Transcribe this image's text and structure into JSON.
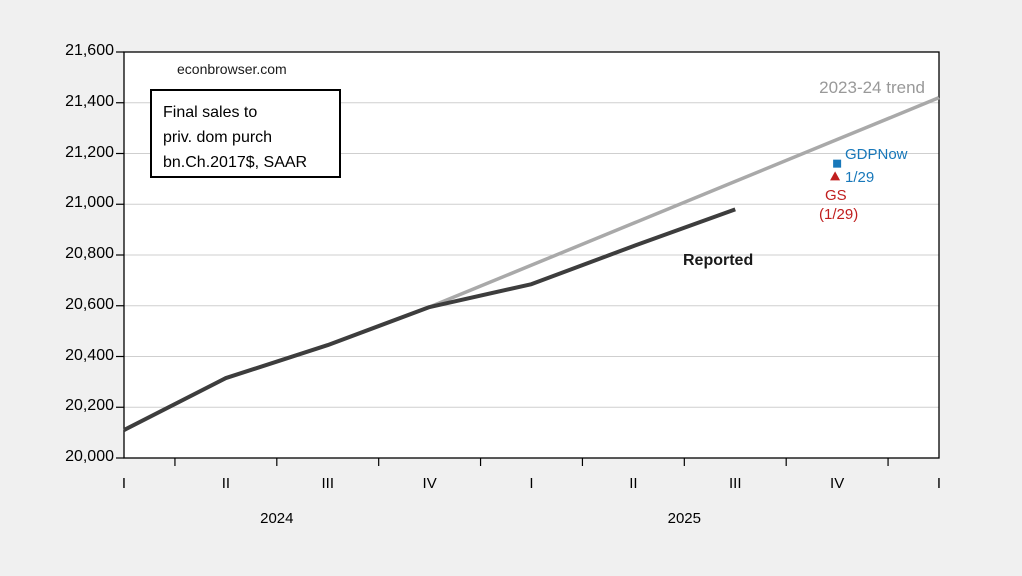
{
  "page": {
    "watermark": "econbrowser.com"
  },
  "annotation_box": {
    "line1": "Final sales to",
    "line2": "priv. dom purch",
    "line3": "bn.Ch.2017$, SAAR"
  },
  "labels": {
    "trend": "2023-24 trend",
    "reported": "Reported",
    "gdpnow": "GDPNow",
    "gdpnow_date": "1/29",
    "gs": "GS",
    "gs_date": "(1/29)"
  },
  "colors": {
    "background": "#f0f0f0",
    "plot_background": "#ffffff",
    "frame": "#000000",
    "grid": "#cfcfcf",
    "trend_gray": "#a9a9a9",
    "reported_dark": "#3d3d3d",
    "gdpnow_blue": "#1878ba",
    "gs_red": "#c01e1e"
  },
  "chart_data": {
    "type": "line",
    "title": "",
    "xlabel": "",
    "ylabel": "Final sales to private domestic purchasers, bn.Ch.2017$, SAAR",
    "x_quarter_labels": [
      "I",
      "II",
      "III",
      "IV",
      "I",
      "II",
      "III",
      "IV",
      "I"
    ],
    "year_labels": [
      {
        "text": "2024",
        "center_quarter_index": 1.5
      },
      {
        "text": "2025",
        "center_quarter_index": 5.5
      }
    ],
    "ylim": [
      20000,
      21600
    ],
    "ytick_step": 200,
    "ytick_labels": [
      "20,000",
      "20,200",
      "20,400",
      "20,600",
      "20,800",
      "21,000",
      "21,200",
      "21,400",
      "21,600"
    ],
    "grid": "horizontal",
    "series": [
      {
        "name": "2023-24 trend",
        "color_key": "trend_gray",
        "width": 3.5,
        "x": [
          0,
          1,
          2,
          3,
          4,
          5,
          6,
          7,
          8
        ],
        "values": [
          20110,
          20315,
          20445,
          20595,
          20760,
          20925,
          21090,
          21255,
          21420
        ]
      },
      {
        "name": "Reported",
        "color_key": "reported_dark",
        "width": 4,
        "x": [
          0,
          1,
          2,
          3,
          4,
          5,
          6
        ],
        "values": [
          20110,
          20315,
          20445,
          20595,
          20685,
          20835,
          20980
        ]
      }
    ],
    "point_markers": [
      {
        "name": "GDPNow 1/29",
        "shape": "square",
        "color_key": "gdpnow_blue",
        "x": 7,
        "value": 21160
      },
      {
        "name": "GS (1/29)",
        "shape": "triangle",
        "color_key": "gs_red",
        "x": 6.98,
        "value": 21110
      }
    ]
  }
}
